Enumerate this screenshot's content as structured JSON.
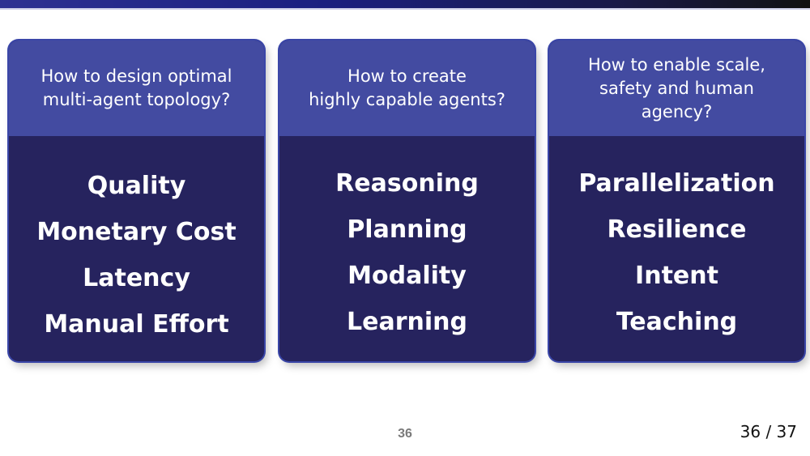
{
  "cards": [
    {
      "question_lines": [
        "How to design optimal",
        "multi-agent topology?"
      ],
      "items": [
        "Quality",
        "Monetary Cost",
        "Latency",
        "Manual Effort"
      ]
    },
    {
      "question_lines": [
        "How to create",
        "highly capable agents?"
      ],
      "items": [
        "Reasoning",
        "Planning",
        "Modality",
        "Learning"
      ]
    },
    {
      "question_lines": [
        "How to enable scale,",
        "safety and human",
        "agency?"
      ],
      "items": [
        "Parallelization",
        "Resilience",
        "Intent",
        "Teaching"
      ]
    }
  ],
  "footer": {
    "page_number": "36",
    "slide_counter": "36 / 37"
  },
  "colors": {
    "card_header": "#434ba1",
    "card_body": "#26235e",
    "card_border": "#3a46a8",
    "top_bar": "#2e3192"
  }
}
